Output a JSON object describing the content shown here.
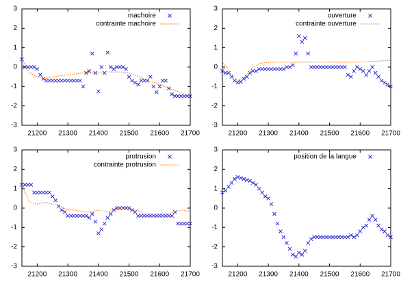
{
  "chart_data": [
    {
      "type": "scatter",
      "legend": "upper right",
      "grid": false,
      "xlim": [
        21150,
        21700
      ],
      "ylim": [
        -3,
        3
      ],
      "xticks": [
        21200,
        21300,
        21400,
        21500,
        21600,
        21700
      ],
      "yticks": [
        -3,
        -2,
        -1,
        0,
        1,
        2,
        3
      ],
      "series": [
        {
          "name": "machoire",
          "type": "scatter",
          "color": "#2a2ad8",
          "x": [
            21150,
            21160,
            21170,
            21180,
            21190,
            21200,
            21210,
            21220,
            21230,
            21240,
            21250,
            21260,
            21270,
            21280,
            21290,
            21300,
            21310,
            21320,
            21330,
            21340,
            21350,
            21360,
            21370,
            21380,
            21390,
            21400,
            21410,
            21420,
            21430,
            21440,
            21450,
            21460,
            21470,
            21480,
            21490,
            21500,
            21510,
            21520,
            21530,
            21540,
            21550,
            21560,
            21570,
            21580,
            21590,
            21600,
            21610,
            21620,
            21630,
            21640,
            21650,
            21660,
            21670,
            21680,
            21690,
            21700
          ],
          "values": [
            0.4,
            0,
            0,
            0,
            0,
            -0.1,
            -0.4,
            -0.6,
            -0.7,
            -0.7,
            -0.7,
            -0.7,
            -0.7,
            -0.7,
            -0.7,
            -0.7,
            -0.7,
            -0.7,
            -0.7,
            -0.7,
            -1.0,
            -0.3,
            -0.2,
            0.7,
            -0.3,
            -1.25,
            0,
            -0.3,
            0.75,
            0,
            -0.1,
            0,
            0,
            0,
            -0.1,
            -0.5,
            -0.7,
            -0.8,
            -0.9,
            -0.7,
            -0.7,
            -0.7,
            -0.5,
            -1.0,
            -1.3,
            -1.0,
            -0.7,
            -0.7,
            -1.1,
            -1.4,
            -1.5,
            -1.5,
            -1.5,
            -1.5,
            -1.5,
            -1.5
          ]
        },
        {
          "name": "contrainte machoire",
          "type": "line",
          "color": "#ff6a00",
          "x": [
            21150,
            21175,
            21200,
            21225,
            21250,
            21275,
            21300,
            21325,
            21350,
            21375,
            21400,
            21425,
            21450,
            21475,
            21500,
            21525,
            21550,
            21575,
            21600,
            21625,
            21650,
            21675,
            21700
          ],
          "values": [
            0.4,
            -0.3,
            -0.5,
            -0.6,
            -0.5,
            -0.45,
            -0.4,
            -0.35,
            -0.3,
            -0.3,
            -0.3,
            -0.25,
            -0.25,
            -0.25,
            -0.3,
            -0.45,
            -0.6,
            -0.75,
            -0.9,
            -1.05,
            -1.2,
            -1.35,
            -1.5
          ]
        }
      ]
    },
    {
      "type": "scatter",
      "legend": "upper right",
      "grid": false,
      "xlim": [
        21150,
        21700
      ],
      "ylim": [
        -3,
        3
      ],
      "xticks": [
        21200,
        21300,
        21400,
        21500,
        21600,
        21700
      ],
      "yticks": [
        -3,
        -2,
        -1,
        0,
        1,
        2,
        3
      ],
      "series": [
        {
          "name": "ouverture",
          "type": "scatter",
          "color": "#2a2ad8",
          "x": [
            21150,
            21160,
            21170,
            21180,
            21190,
            21200,
            21210,
            21220,
            21230,
            21240,
            21250,
            21260,
            21270,
            21280,
            21290,
            21300,
            21310,
            21320,
            21330,
            21340,
            21350,
            21360,
            21370,
            21380,
            21390,
            21400,
            21410,
            21420,
            21430,
            21440,
            21450,
            21460,
            21470,
            21480,
            21490,
            21500,
            21510,
            21520,
            21530,
            21540,
            21550,
            21560,
            21570,
            21580,
            21590,
            21600,
            21610,
            21620,
            21630,
            21640,
            21650,
            21660,
            21670,
            21680,
            21690,
            21700
          ],
          "values": [
            -0.2,
            -0.3,
            -0.3,
            -0.5,
            -0.7,
            -0.8,
            -0.75,
            -0.6,
            -0.5,
            -0.3,
            -0.2,
            -0.2,
            -0.1,
            -0.1,
            -0.1,
            -0.1,
            -0.1,
            -0.1,
            -0.1,
            -0.1,
            -0.1,
            0,
            0,
            0.1,
            0.7,
            1.6,
            1.3,
            1.5,
            0.7,
            0,
            0,
            0,
            0,
            0,
            0,
            0,
            0,
            0,
            0,
            0,
            0,
            -0.4,
            -0.5,
            -0.2,
            0,
            -0.1,
            -0.2,
            -0.4,
            -0.2,
            0,
            -0.3,
            -0.5,
            -0.7,
            -0.8,
            -0.9,
            -1.0
          ]
        },
        {
          "name": "contrainte ouverture",
          "type": "line",
          "color": "#ff6a00",
          "x": [
            21150,
            21175,
            21200,
            21225,
            21250,
            21275,
            21300,
            21325,
            21350,
            21375,
            21400,
            21425,
            21450,
            21475,
            21500,
            21525,
            21550,
            21575,
            21600,
            21625,
            21650,
            21675,
            21700
          ],
          "values": [
            0.3,
            -0.3,
            -0.7,
            -0.5,
            0,
            0.2,
            0.25,
            0.25,
            0.25,
            0.25,
            0.25,
            0.25,
            0.25,
            0.25,
            0.25,
            0.25,
            0.25,
            0.25,
            0.25,
            0.28,
            0.3,
            0.32,
            0.35
          ]
        }
      ]
    },
    {
      "type": "scatter",
      "legend": "upper right",
      "grid": false,
      "xlim": [
        21150,
        21700
      ],
      "ylim": [
        -3,
        3
      ],
      "xticks": [
        21200,
        21300,
        21400,
        21500,
        21600,
        21700
      ],
      "yticks": [
        -3,
        -2,
        -1,
        0,
        1,
        2,
        3
      ],
      "series": [
        {
          "name": "protrusion",
          "type": "scatter",
          "color": "#2a2ad8",
          "x": [
            21150,
            21160,
            21170,
            21180,
            21190,
            21200,
            21210,
            21220,
            21230,
            21240,
            21250,
            21260,
            21270,
            21280,
            21290,
            21300,
            21310,
            21320,
            21330,
            21340,
            21350,
            21360,
            21370,
            21380,
            21390,
            21400,
            21410,
            21420,
            21430,
            21440,
            21450,
            21460,
            21470,
            21480,
            21490,
            21500,
            21510,
            21520,
            21530,
            21540,
            21550,
            21560,
            21570,
            21580,
            21590,
            21600,
            21610,
            21620,
            21630,
            21640,
            21650,
            21660,
            21670,
            21680,
            21690,
            21700
          ],
          "values": [
            1.2,
            1.2,
            1.2,
            1.2,
            0.8,
            0.8,
            0.8,
            0.8,
            0.8,
            0.8,
            0.6,
            0.4,
            0.1,
            -0.1,
            -0.2,
            -0.4,
            -0.4,
            -0.4,
            -0.4,
            -0.4,
            -0.4,
            -0.4,
            -0.5,
            -0.3,
            -0.7,
            -1.3,
            -1.1,
            -0.8,
            -0.5,
            -0.3,
            -0.1,
            0,
            0,
            0,
            0,
            0,
            -0.1,
            -0.2,
            -0.4,
            -0.4,
            -0.4,
            -0.4,
            -0.4,
            -0.4,
            -0.4,
            -0.4,
            -0.4,
            -0.4,
            -0.4,
            -0.4,
            -0.2,
            -0.8,
            -0.8,
            -0.8,
            -0.8,
            -0.8
          ]
        },
        {
          "name": "contrainte protrusion",
          "type": "line",
          "color": "#ff6a00",
          "x": [
            21150,
            21175,
            21200,
            21225,
            21250,
            21275,
            21300,
            21325,
            21350,
            21375,
            21400,
            21425,
            21450,
            21475,
            21500,
            21525,
            21550,
            21575,
            21600,
            21625,
            21650,
            21675,
            21700
          ],
          "values": [
            1.2,
            0.3,
            0.2,
            0.3,
            0.2,
            0.1,
            -0.1,
            -0.1,
            -0.2,
            -0.2,
            -0.1,
            -0.2,
            -0.1,
            0,
            -0.1,
            -0.1,
            -0.3,
            -0.3,
            -0.3,
            -0.3,
            -0.2,
            -0.1,
            -0.2
          ]
        }
      ]
    },
    {
      "type": "scatter",
      "legend": "upper right",
      "grid": false,
      "xlim": [
        21150,
        21700
      ],
      "ylim": [
        -3,
        3
      ],
      "xticks": [
        21200,
        21300,
        21400,
        21500,
        21600,
        21700
      ],
      "yticks": [
        -3,
        -2,
        -1,
        0,
        1,
        2,
        3
      ],
      "series": [
        {
          "name": "position de la langue",
          "type": "scatter",
          "color": "#2a2ad8",
          "x": [
            21150,
            21160,
            21170,
            21180,
            21190,
            21200,
            21210,
            21220,
            21230,
            21240,
            21250,
            21260,
            21270,
            21280,
            21290,
            21300,
            21310,
            21320,
            21330,
            21340,
            21350,
            21360,
            21370,
            21380,
            21390,
            21400,
            21410,
            21420,
            21430,
            21440,
            21450,
            21460,
            21470,
            21480,
            21490,
            21500,
            21510,
            21520,
            21530,
            21540,
            21550,
            21560,
            21570,
            21580,
            21590,
            21600,
            21610,
            21620,
            21630,
            21640,
            21650,
            21660,
            21670,
            21680,
            21690,
            21700
          ],
          "values": [
            0.8,
            0.9,
            1.1,
            1.3,
            1.5,
            1.6,
            1.55,
            1.5,
            1.45,
            1.4,
            1.3,
            1.2,
            1.0,
            0.8,
            0.6,
            0.5,
            0.2,
            -0.3,
            -0.8,
            -1.2,
            -1.5,
            -1.8,
            -2.1,
            -2.4,
            -2.5,
            -2.3,
            -2.4,
            -2.2,
            -1.8,
            -1.6,
            -1.5,
            -1.5,
            -1.5,
            -1.5,
            -1.5,
            -1.5,
            -1.5,
            -1.5,
            -1.5,
            -1.5,
            -1.5,
            -1.5,
            -1.4,
            -1.5,
            -1.4,
            -1.2,
            -1.0,
            -0.9,
            -0.6,
            -0.4,
            -0.6,
            -0.9,
            -1.1,
            -1.2,
            -1.4,
            -1.5
          ]
        }
      ]
    }
  ]
}
